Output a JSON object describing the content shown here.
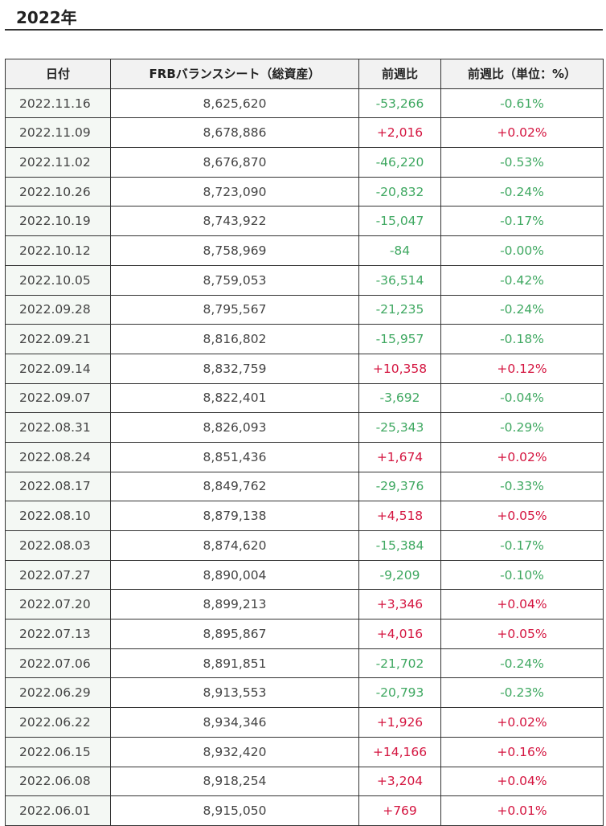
{
  "heading": "2022年",
  "table": {
    "headers": [
      "日付",
      "FRBバランスシート（総資産）",
      "前週比",
      "前週比（単位：%）"
    ],
    "rows": [
      {
        "date": "2022.11.16",
        "total": "8,625,620",
        "change": "-53,266",
        "pct": "-0.61%",
        "dir": "neg"
      },
      {
        "date": "2022.11.09",
        "total": "8,678,886",
        "change": "+2,016",
        "pct": "+0.02%",
        "dir": "pos"
      },
      {
        "date": "2022.11.02",
        "total": "8,676,870",
        "change": "-46,220",
        "pct": "-0.53%",
        "dir": "neg"
      },
      {
        "date": "2022.10.26",
        "total": "8,723,090",
        "change": "-20,832",
        "pct": "-0.24%",
        "dir": "neg"
      },
      {
        "date": "2022.10.19",
        "total": "8,743,922",
        "change": "-15,047",
        "pct": "-0.17%",
        "dir": "neg"
      },
      {
        "date": "2022.10.12",
        "total": "8,758,969",
        "change": "-84",
        "pct": "-0.00%",
        "dir": "neg"
      },
      {
        "date": "2022.10.05",
        "total": "8,759,053",
        "change": "-36,514",
        "pct": "-0.42%",
        "dir": "neg"
      },
      {
        "date": "2022.09.28",
        "total": "8,795,567",
        "change": "-21,235",
        "pct": "-0.24%",
        "dir": "neg"
      },
      {
        "date": "2022.09.21",
        "total": "8,816,802",
        "change": "-15,957",
        "pct": "-0.18%",
        "dir": "neg"
      },
      {
        "date": "2022.09.14",
        "total": "8,832,759",
        "change": "+10,358",
        "pct": "+0.12%",
        "dir": "pos"
      },
      {
        "date": "2022.09.07",
        "total": "8,822,401",
        "change": "-3,692",
        "pct": "-0.04%",
        "dir": "neg"
      },
      {
        "date": "2022.08.31",
        "total": "8,826,093",
        "change": "-25,343",
        "pct": "-0.29%",
        "dir": "neg"
      },
      {
        "date": "2022.08.24",
        "total": "8,851,436",
        "change": "+1,674",
        "pct": "+0.02%",
        "dir": "pos"
      },
      {
        "date": "2022.08.17",
        "total": "8,849,762",
        "change": "-29,376",
        "pct": "-0.33%",
        "dir": "neg"
      },
      {
        "date": "2022.08.10",
        "total": "8,879,138",
        "change": "+4,518",
        "pct": "+0.05%",
        "dir": "pos"
      },
      {
        "date": "2022.08.03",
        "total": "8,874,620",
        "change": "-15,384",
        "pct": "-0.17%",
        "dir": "neg"
      },
      {
        "date": "2022.07.27",
        "total": "8,890,004",
        "change": "-9,209",
        "pct": "-0.10%",
        "dir": "neg"
      },
      {
        "date": "2022.07.20",
        "total": "8,899,213",
        "change": "+3,346",
        "pct": "+0.04%",
        "dir": "pos"
      },
      {
        "date": "2022.07.13",
        "total": "8,895,867",
        "change": "+4,016",
        "pct": "+0.05%",
        "dir": "pos"
      },
      {
        "date": "2022.07.06",
        "total": "8,891,851",
        "change": "-21,702",
        "pct": "-0.24%",
        "dir": "neg"
      },
      {
        "date": "2022.06.29",
        "total": "8,913,553",
        "change": "-20,793",
        "pct": "-0.23%",
        "dir": "neg"
      },
      {
        "date": "2022.06.22",
        "total": "8,934,346",
        "change": "+1,926",
        "pct": "+0.02%",
        "dir": "pos"
      },
      {
        "date": "2022.06.15",
        "total": "8,932,420",
        "change": "+14,166",
        "pct": "+0.16%",
        "dir": "pos"
      },
      {
        "date": "2022.06.08",
        "total": "8,918,254",
        "change": "+3,204",
        "pct": "+0.04%",
        "dir": "pos"
      },
      {
        "date": "2022.06.01",
        "total": "8,915,050",
        "change": "+769",
        "pct": "+0.01%",
        "dir": "pos"
      }
    ]
  },
  "colors": {
    "positive": "#d4143f",
    "negative": "#3fa861",
    "date_cell_bg": "#f4f8f4",
    "header_bg": "#f2f2f2"
  }
}
